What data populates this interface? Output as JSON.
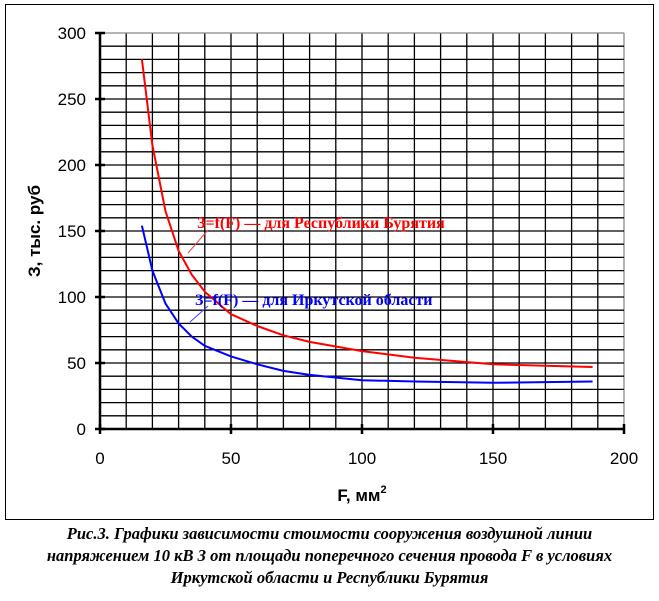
{
  "chart_data": {
    "type": "line",
    "title": "",
    "xlabel": "F, мм",
    "xlabel_sup": "2",
    "ylabel": "З, тыс. руб",
    "xlim": [
      0,
      200
    ],
    "ylim": [
      0,
      300
    ],
    "x_ticks": [
      "0",
      "50",
      "100",
      "150",
      "200"
    ],
    "y_ticks": [
      "0",
      "50",
      "100",
      "150",
      "200",
      "250",
      "300"
    ],
    "grid": {
      "x_step": 10,
      "y_step": 10
    },
    "series": [
      {
        "name": "З=f(F) — для Республики Бурятия",
        "color": "#ff0000",
        "x": [
          16,
          20,
          25,
          30,
          35,
          40,
          50,
          60,
          70,
          80,
          100,
          120,
          150,
          188
        ],
        "y": [
          280,
          215,
          165,
          135,
          117,
          104,
          87,
          78,
          71,
          66,
          59,
          54,
          49,
          47
        ]
      },
      {
        "name": "З=f(F) — для Иркутской области",
        "color": "#0000ff",
        "x": [
          16,
          20,
          25,
          30,
          35,
          40,
          50,
          60,
          70,
          80,
          100,
          120,
          150,
          188
        ],
        "y": [
          154,
          120,
          95,
          80,
          70,
          63,
          55,
          49,
          44,
          41,
          37,
          36,
          35,
          36
        ]
      }
    ]
  },
  "caption": {
    "line1": "Рис.3. Графики зависимости стоимости сооружения воздушной линии",
    "line2": "напряжением 10 кВ  З от площади поперечного сечения провода F в условиях",
    "line3": "Иркутской области и Республики Бурятия"
  }
}
